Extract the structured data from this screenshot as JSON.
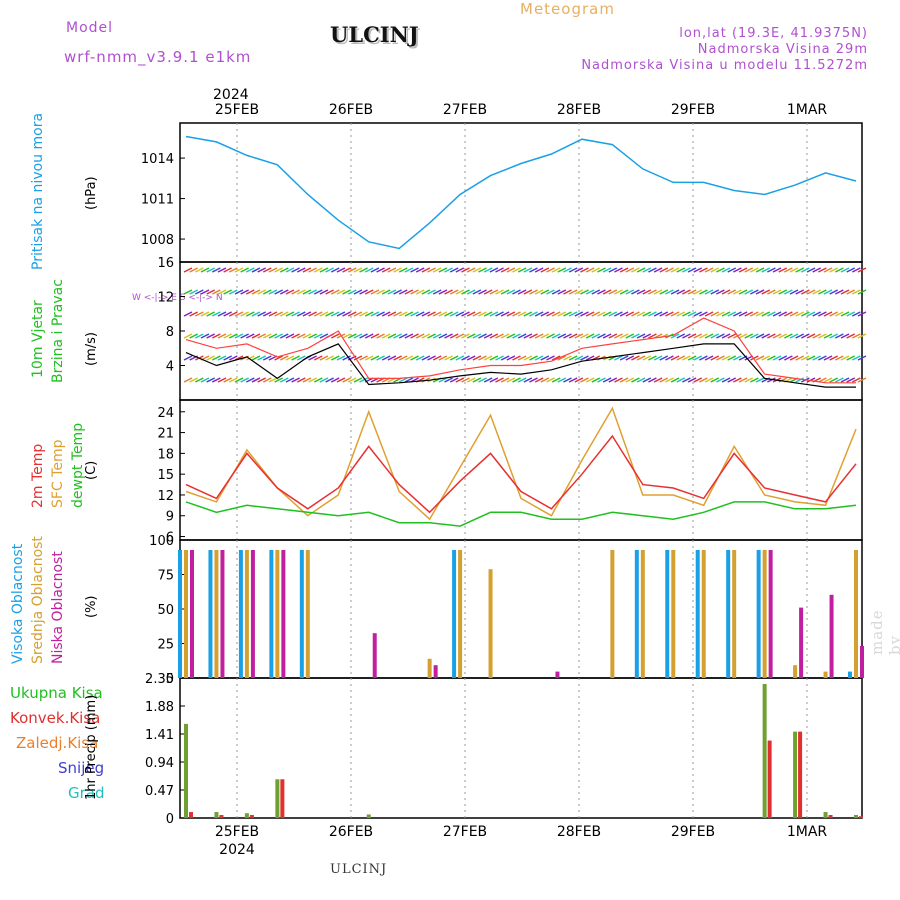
{
  "header": {
    "model_label": "Model",
    "model_name": "wrf-nmm_v3.9.1  e1km",
    "station": "ULCINJ",
    "meteogram_label": "Meteogram",
    "lonlat": "lon,lat (19.3E, 41.9375N)",
    "elevation": "Nadmorska Visina 29m",
    "model_elevation": "Nadmorska Visina u modelu 11.5272m"
  },
  "footer": {
    "station": "ULCINJ"
  },
  "watermark": "made by Angel",
  "colors": {
    "pressure": "#1aa0e6",
    "temp2m": "#e83030",
    "sfc_temp": "#e0a030",
    "dewpoint": "#20c020",
    "high_cloud": "#1aa0e6",
    "mid_cloud": "#d4a030",
    "low_cloud": "#c020a0",
    "total_precip": "#70a030",
    "convective_precip": "#e03030"
  },
  "chart_data": [
    {
      "type": "line",
      "panel": "pressure",
      "ylabel": "Pritisak na nivou mora",
      "unit": "(hPa)",
      "yticks": [
        "1014",
        "1011",
        "1008"
      ],
      "ylim": [
        1006.3,
        1016.6
      ],
      "x": [
        "25FEB 00",
        "25FEB 06",
        "25FEB 12",
        "25FEB 18",
        "26FEB 00",
        "26FEB 06",
        "26FEB 12",
        "26FEB 18",
        "27FEB 00",
        "27FEB 06",
        "27FEB 12",
        "27FEB 18",
        "28FEB 00",
        "28FEB 06",
        "28FEB 12",
        "28FEB 18",
        "29FEB 00",
        "29FEB 06",
        "29FEB 12",
        "29FEB 18",
        "01MAR 00",
        "01MAR 06",
        "01MAR 12"
      ],
      "series": [
        {
          "values": [
            1015.6,
            1015.2,
            1014.2,
            1013.5,
            1011.3,
            1009.4,
            1007.8,
            1007.3,
            1009.2,
            1011.3,
            1012.7,
            1013.6,
            1014.3,
            1015.4,
            1015.0,
            1013.2,
            1012.2,
            1012.2,
            1011.6,
            1011.3,
            1012.0,
            1012.9,
            1012.3
          ]
        }
      ]
    },
    {
      "type": "line",
      "panel": "wind",
      "ylabel": [
        "10m Vjetar",
        "Brzina i Pravac"
      ],
      "unit": "(m/s)",
      "compass": "W <-|-> E   S <-|-> N",
      "yticks": [
        "16",
        "12",
        "8",
        "4"
      ],
      "ylim": [
        0,
        16
      ],
      "x": [
        "25FEB 00",
        "25FEB 06",
        "25FEB 12",
        "25FEB 18",
        "26FEB 00",
        "26FEB 06",
        "26FEB 12",
        "26FEB 18",
        "27FEB 00",
        "27FEB 06",
        "27FEB 12",
        "27FEB 18",
        "28FEB 00",
        "28FEB 06",
        "28FEB 12",
        "28FEB 18",
        "29FEB 00",
        "29FEB 06",
        "29FEB 12",
        "29FEB 18",
        "01MAR 00",
        "01MAR 06",
        "01MAR 12"
      ],
      "series": [
        {
          "kind": "speed",
          "values": [
            5.5,
            4.0,
            5.0,
            2.5,
            5.0,
            6.5,
            1.8,
            2.0,
            2.3,
            2.8,
            3.2,
            3.0,
            3.5,
            4.5,
            5.0,
            5.5,
            6.0,
            6.5,
            6.5,
            2.5,
            2.0,
            1.5,
            1.5
          ]
        },
        {
          "kind": "gust",
          "values": [
            7.0,
            6.0,
            6.5,
            5.0,
            6.0,
            8.0,
            2.5,
            2.5,
            2.8,
            3.5,
            4.0,
            4.0,
            4.5,
            6.0,
            6.5,
            7.0,
            7.5,
            9.5,
            8.0,
            3.0,
            2.5,
            2.0,
            2.0
          ]
        }
      ]
    },
    {
      "type": "line",
      "panel": "temperature",
      "ylabel": [
        "2m Temp",
        "SFC Temp",
        "dewpt Temp"
      ],
      "unit": "(C)",
      "yticks": [
        "24",
        "21",
        "18",
        "15",
        "12",
        "9",
        "6"
      ],
      "ylim": [
        5.5,
        25.7
      ],
      "x": [
        "25FEB 00",
        "25FEB 06",
        "25FEB 12",
        "25FEB 18",
        "26FEB 00",
        "26FEB 06",
        "26FEB 12",
        "26FEB 18",
        "27FEB 00",
        "27FEB 06",
        "27FEB 12",
        "27FEB 18",
        "28FEB 00",
        "28FEB 06",
        "28FEB 12",
        "28FEB 18",
        "29FEB 00",
        "29FEB 06",
        "29FEB 12",
        "29FEB 18",
        "01MAR 00",
        "01MAR 06",
        "01MAR 12"
      ],
      "series": [
        {
          "name": "2m Temp",
          "values": [
            13.5,
            11.5,
            18.0,
            13.0,
            10.0,
            13.0,
            19.0,
            13.5,
            9.5,
            14.0,
            18.0,
            12.5,
            10.0,
            15.0,
            20.5,
            13.5,
            13.0,
            11.5,
            18.0,
            13.0,
            12.0,
            11.0,
            16.5
          ]
        },
        {
          "name": "SFC Temp",
          "values": [
            12.5,
            11.0,
            18.5,
            13.0,
            9.0,
            12.0,
            24.0,
            12.5,
            8.5,
            16.0,
            23.5,
            11.5,
            9.0,
            17.0,
            24.5,
            12.0,
            12.0,
            10.5,
            19.0,
            12.0,
            11.0,
            10.5,
            21.5
          ]
        },
        {
          "name": "dewpt Temp",
          "values": [
            11.0,
            9.5,
            10.5,
            10.0,
            9.5,
            9.0,
            9.5,
            8.0,
            8.0,
            7.5,
            9.5,
            9.5,
            8.5,
            8.5,
            9.5,
            9.0,
            8.5,
            9.5,
            11.0,
            11.0,
            10.0,
            10.0,
            10.5
          ]
        }
      ]
    },
    {
      "type": "bar",
      "panel": "cloud",
      "ylabel": [
        "Visoka Oblacnost",
        "Srednja Oblacnost",
        "Niska Oblacnost"
      ],
      "unit": "(%)",
      "yticks": [
        "100",
        "75",
        "50",
        "25",
        "0"
      ],
      "ylim": [
        0,
        100
      ],
      "x": [
        "25FEB 00",
        "25FEB 06",
        "25FEB 12",
        "25FEB 18",
        "26FEB 00",
        "26FEB 06",
        "26FEB 12",
        "26FEB 18",
        "27FEB 00",
        "27FEB 06",
        "27FEB 12",
        "27FEB 18",
        "28FEB 00",
        "28FEB 06",
        "28FEB 12",
        "28FEB 18",
        "29FEB 00",
        "29FEB 06",
        "29FEB 12",
        "29FEB 18",
        "01MAR 00",
        "01MAR 06",
        "01MAR 12"
      ],
      "series": [
        {
          "name": "Visoka Oblacnost",
          "values": [
            100,
            100,
            100,
            100,
            100,
            0,
            0,
            0,
            0,
            100,
            0,
            0,
            0,
            0,
            0,
            100,
            100,
            100,
            100,
            100,
            0,
            0,
            5
          ]
        },
        {
          "name": "Srednja Oblacnost",
          "values": [
            100,
            100,
            100,
            100,
            100,
            0,
            0,
            0,
            15,
            100,
            85,
            0,
            0,
            0,
            100,
            100,
            100,
            100,
            100,
            100,
            10,
            5,
            100
          ]
        },
        {
          "name": "Niska Oblacnost",
          "values": [
            100,
            100,
            100,
            100,
            0,
            0,
            35,
            0,
            10,
            0,
            0,
            0,
            5,
            0,
            0,
            0,
            0,
            0,
            0,
            100,
            55,
            65,
            25
          ]
        }
      ]
    },
    {
      "type": "bar",
      "panel": "precipitation",
      "ylabel": "1hr Precip (mm)",
      "legend": [
        "Ukupna Kisa",
        "Konvek.Kisa",
        "Zaledj.Kisa",
        "Snijeg",
        "Grad"
      ],
      "yticks": [
        "2.35",
        "1.88",
        "1.41",
        "0.94",
        "0.47",
        "0"
      ],
      "ylim": [
        0,
        2.35
      ],
      "x": [
        "25FEB 00",
        "25FEB 06",
        "25FEB 12",
        "25FEB 18",
        "26FEB 00",
        "26FEB 06",
        "26FEB 12",
        "26FEB 18",
        "27FEB 00",
        "27FEB 06",
        "27FEB 12",
        "27FEB 18",
        "28FEB 00",
        "28FEB 06",
        "28FEB 12",
        "28FEB 18",
        "29FEB 00",
        "29FEB 06",
        "29FEB 12",
        "29FEB 18",
        "01MAR 00",
        "01MAR 06",
        "01MAR 12"
      ],
      "series": [
        {
          "name": "Ukupna Kisa",
          "values": [
            1.58,
            0.1,
            0.08,
            0.65,
            0.0,
            0.0,
            0.06,
            0.0,
            0.0,
            0.0,
            0.0,
            0.0,
            0.0,
            0.0,
            0.0,
            0.0,
            0.0,
            0.0,
            0.0,
            2.25,
            1.45,
            0.1,
            0.05
          ]
        },
        {
          "name": "Konvek.Kisa",
          "values": [
            0.1,
            0.05,
            0.05,
            0.65,
            0.0,
            0.0,
            0.0,
            0.0,
            0.0,
            0.0,
            0.0,
            0.0,
            0.0,
            0.0,
            0.0,
            0.0,
            0.0,
            0.0,
            0.0,
            1.3,
            1.45,
            0.05,
            0.03
          ]
        }
      ]
    }
  ],
  "axis": {
    "top_year": "2024",
    "top_dates": [
      "25FEB",
      "26FEB",
      "27FEB",
      "28FEB",
      "29FEB",
      "1MAR"
    ],
    "bottom_dates": [
      "25FEB",
      "26FEB",
      "27FEB",
      "28FEB",
      "29FEB",
      "1MAR"
    ],
    "bottom_year": "2024"
  },
  "legend_colors": {
    "Ukupna Kisa": "#20c020",
    "Konvek.Kisa": "#e03030",
    "Zaledj.Kisa": "#e88030",
    "Snijeg": "#4040d0",
    "Grad": "#20c0c0",
    "10m Vjetar": "#20c020",
    "Brzina i Pravac": "#20c020",
    "Visoka Oblacnost": "#1aa0e6",
    "Srednja Oblacnost": "#d4a030",
    "Niska Oblacnost": "#c020a0",
    "Pritisak na nivou mora": "#1aa0e6",
    "2m Temp": "#e83030",
    "SFC Temp": "#e0a030",
    "dewpt Temp": "#20c020"
  }
}
